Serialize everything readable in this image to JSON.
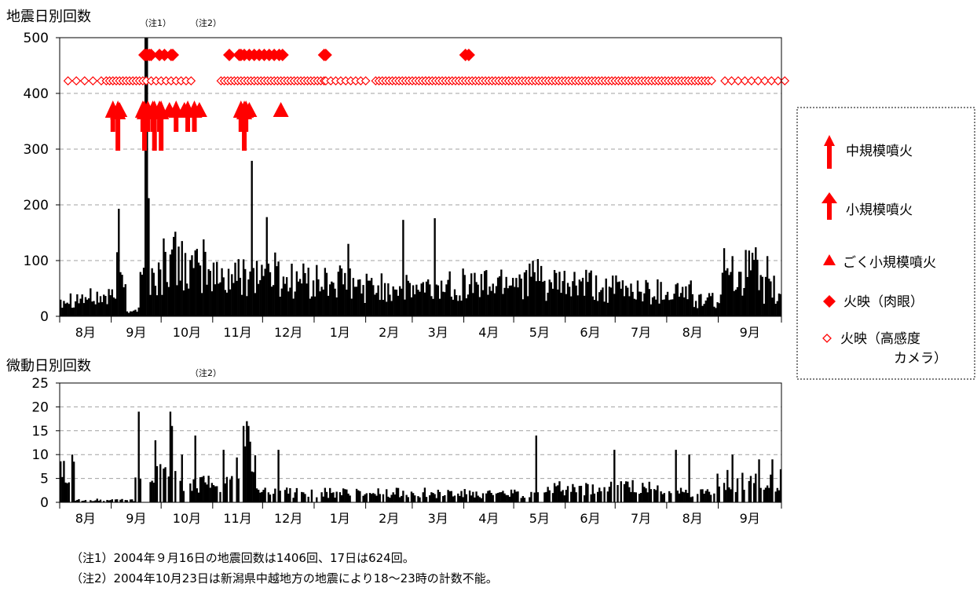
{
  "chart_data": [
    {
      "type": "bar",
      "title": "地震日別回数",
      "ylim": [
        0,
        500
      ],
      "yticks": [
        0,
        100,
        200,
        300,
        400,
        500
      ],
      "grid": true,
      "x_labels": [
        "8月",
        "9月",
        "10月",
        "11月",
        "12月",
        "1月",
        "2月",
        "3月",
        "4月",
        "5月",
        "6月",
        "7月",
        "8月",
        "9月"
      ],
      "notes_on_chart": [
        "（注1）",
        "（注2）"
      ],
      "spikes": [
        {
          "day": 34,
          "value": 115
        },
        {
          "day": 35,
          "value": 193
        },
        {
          "day": 51,
          "value": 1406
        },
        {
          "day": 52,
          "value": 624
        },
        {
          "day": 53,
          "value": 212
        },
        {
          "day": 86,
          "value": 138
        },
        {
          "day": 115,
          "value": 279
        },
        {
          "day": 124,
          "value": 178
        },
        {
          "day": 173,
          "value": 130
        },
        {
          "day": 206,
          "value": 173
        },
        {
          "day": 225,
          "value": 176
        },
        {
          "day": 404,
          "value": 108
        },
        {
          "day": 414,
          "value": 118
        },
        {
          "day": 425,
          "value": 108
        }
      ],
      "segments": [
        {
          "from": 0,
          "to": 33,
          "base": 33
        },
        {
          "from": 33,
          "to": 40,
          "base": 55
        },
        {
          "from": 40,
          "to": 48,
          "base": 12
        },
        {
          "from": 48,
          "to": 62,
          "base": 70
        },
        {
          "from": 62,
          "to": 76,
          "base": 100
        },
        {
          "from": 76,
          "to": 90,
          "base": 80
        },
        {
          "from": 90,
          "to": 110,
          "base": 70
        },
        {
          "from": 110,
          "to": 132,
          "base": 78
        },
        {
          "from": 132,
          "to": 150,
          "base": 65
        },
        {
          "from": 150,
          "to": 175,
          "base": 60
        },
        {
          "from": 175,
          "to": 205,
          "base": 52
        },
        {
          "from": 205,
          "to": 230,
          "base": 48
        },
        {
          "from": 230,
          "to": 265,
          "base": 58
        },
        {
          "from": 265,
          "to": 290,
          "base": 68
        },
        {
          "from": 290,
          "to": 320,
          "base": 55
        },
        {
          "from": 320,
          "to": 350,
          "base": 48
        },
        {
          "from": 350,
          "to": 380,
          "base": 45
        },
        {
          "from": 380,
          "to": 398,
          "base": 28
        },
        {
          "from": 398,
          "to": 420,
          "base": 80
        },
        {
          "from": 420,
          "to": 430,
          "base": 48
        },
        {
          "from": 430,
          "to": 434,
          "base": 35
        }
      ],
      "mid_eruptions": [
        {
          "day": 35
        },
        {
          "day": 51
        },
        {
          "day": 57
        },
        {
          "day": 61
        },
        {
          "day": 111
        }
      ],
      "small_eruptions": [
        {
          "day": 32
        },
        {
          "day": 50
        },
        {
          "day": 53
        },
        {
          "day": 56
        },
        {
          "day": 60
        },
        {
          "day": 70
        },
        {
          "day": 77
        },
        {
          "day": 81
        },
        {
          "day": 109
        },
        {
          "day": 112
        }
      ],
      "tiny_eruptions": [
        {
          "day": 36
        },
        {
          "day": 53
        },
        {
          "day": 66
        },
        {
          "day": 75
        },
        {
          "day": 84
        },
        {
          "day": 111
        },
        {
          "day": 114
        },
        {
          "day": 133
        }
      ],
      "glow_naked": [
        51,
        52,
        53,
        54,
        55,
        60,
        63,
        67,
        68,
        102,
        108,
        109,
        111,
        114,
        117,
        120,
        123,
        126,
        129,
        132,
        134,
        159,
        160,
        244,
        246
      ],
      "glow_camera_ranges": [
        {
          "from": 5,
          "to": 27,
          "step": 5
        },
        {
          "from": 28,
          "to": 50,
          "step": 2
        },
        {
          "from": 52,
          "to": 80,
          "step": 3
        },
        {
          "from": 97,
          "to": 160,
          "step": 2
        },
        {
          "from": 160,
          "to": 184,
          "step": 3
        },
        {
          "from": 190,
          "to": 222,
          "step": 2
        },
        {
          "from": 220,
          "to": 270,
          "step": 2
        },
        {
          "from": 270,
          "to": 392,
          "step": 2
        },
        {
          "from": 400,
          "to": 436,
          "step": 4
        }
      ]
    },
    {
      "type": "bar",
      "title": "微動日別回数",
      "ylim": [
        0,
        25
      ],
      "yticks": [
        0,
        5,
        10,
        15,
        20,
        25
      ],
      "grid": true,
      "x_labels": [
        "8月",
        "9月",
        "10月",
        "11月",
        "12月",
        "1月",
        "2月",
        "3月",
        "4月",
        "5月",
        "6月",
        "7月",
        "8月",
        "9月"
      ],
      "notes_on_chart": [
        "（注2）"
      ],
      "spikes": [
        {
          "day": 7,
          "value": 10
        },
        {
          "day": 47,
          "value": 19
        },
        {
          "day": 57,
          "value": 13
        },
        {
          "day": 66,
          "value": 19
        },
        {
          "day": 67,
          "value": 16
        },
        {
          "day": 73,
          "value": 10
        },
        {
          "day": 81,
          "value": 14
        },
        {
          "day": 98,
          "value": 11
        },
        {
          "day": 110,
          "value": 16
        },
        {
          "day": 112,
          "value": 17
        },
        {
          "day": 113,
          "value": 16
        },
        {
          "day": 131,
          "value": 11
        },
        {
          "day": 286,
          "value": 14
        },
        {
          "day": 333,
          "value": 11
        },
        {
          "day": 370,
          "value": 11
        },
        {
          "day": 378,
          "value": 10
        },
        {
          "day": 404,
          "value": 10
        },
        {
          "day": 420,
          "value": 9
        },
        {
          "day": 428,
          "value": 9
        }
      ],
      "segments": [
        {
          "from": 0,
          "to": 9,
          "base": 6
        },
        {
          "from": 9,
          "to": 45,
          "base": 0.5
        },
        {
          "from": 45,
          "to": 58,
          "base": 5
        },
        {
          "from": 58,
          "to": 72,
          "base": 8
        },
        {
          "from": 72,
          "to": 90,
          "base": 4
        },
        {
          "from": 90,
          "to": 105,
          "base": 4
        },
        {
          "from": 105,
          "to": 118,
          "base": 9
        },
        {
          "from": 118,
          "to": 160,
          "base": 2
        },
        {
          "from": 160,
          "to": 220,
          "base": 2
        },
        {
          "from": 220,
          "to": 290,
          "base": 1.8
        },
        {
          "from": 290,
          "to": 360,
          "base": 3
        },
        {
          "from": 360,
          "to": 395,
          "base": 2
        },
        {
          "from": 395,
          "to": 434,
          "base": 4.5
        }
      ]
    }
  ],
  "legend": {
    "items": [
      {
        "symbol": "mid-eruption",
        "label": "中規模噴火"
      },
      {
        "symbol": "small-eruption",
        "label": "小規模噴火"
      },
      {
        "symbol": "tiny-eruption",
        "label": "ごく小規模噴火"
      },
      {
        "symbol": "glow-naked",
        "label": "火映（肉眼）"
      },
      {
        "symbol": "glow-camera",
        "label": "火映（高感度",
        "label2": "カメラ）"
      }
    ]
  },
  "notes": [
    "（注1）2004年９月16日の地震回数は1406回、17日は624回。",
    "（注2）2004年10月23日は新潟県中越地方の地震により18～23時の計数不能。"
  ],
  "colors": {
    "marker": "#ff0000",
    "bars": "#000000",
    "grid": "#a0a0a0"
  }
}
